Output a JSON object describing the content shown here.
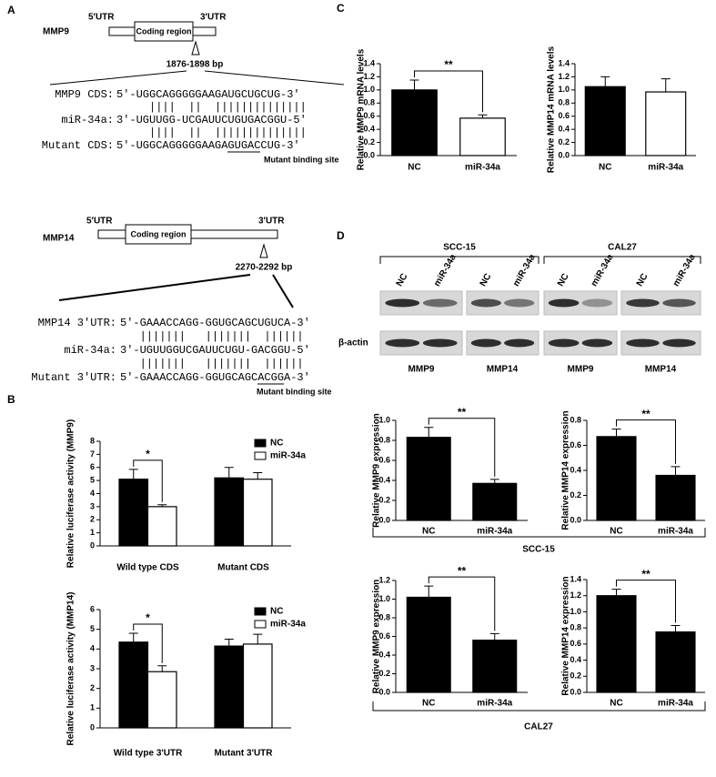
{
  "panel_labels": [
    "A",
    "B",
    "C",
    "D"
  ],
  "panel_a": {
    "mmp9": {
      "gene": "MMP9",
      "utr5": "5′UTR",
      "coding": "Coding region",
      "utr3": "3′UTR",
      "site": "1876-1898 bp",
      "lines": [
        {
          "label": "MMP9 CDS:",
          "sequence": "5′-UGGCAGGGGGAAGAUGCUGCUG-3′"
        },
        {
          "label": "miR-34a:",
          "sequence": "3′-UGUUGG-UCGAUUCUGUGACGGU-5′"
        },
        {
          "label": "Mutant CDS:",
          "sequence": "5′-UGGCAGGGGGAAGAGUGACCUG-3′"
        }
      ],
      "pairs": [
        "     ||||  ||  ||||||||||||||",
        "     ||||  ||  ||||||||||||||"
      ],
      "mutant_note": "Mutant binding site"
    },
    "mmp14": {
      "gene": "MMP14",
      "utr5": "5′UTR",
      "coding": "Coding region",
      "utr3": "3′UTR",
      "site": "2270-2292 bp",
      "lines": [
        {
          "label": "MMP14 3′UTR:",
          "sequence": "5′-GAAACCAGG-GGUGCAGCUGUCA-3′"
        },
        {
          "label": "miR-34a:",
          "sequence": "3′-UGUUGGUCGAUUCUGU-GACGGU-5′"
        },
        {
          "label": "Mutant 3′UTR:",
          "sequence": "5′-GAAACCAGG-GGUGCAGCACGGA-3′"
        }
      ],
      "pairs": [
        "   |||||||   |||||||  ||||||",
        "   |||||||   |||||||  ||||||"
      ],
      "mutant_note": "Mutant binding site"
    }
  },
  "panel_d": {
    "blot_groups": [
      "SCC-15",
      "CAL27"
    ],
    "lanes": [
      "NC",
      "miR-34a",
      "NC",
      "miR-34a",
      "NC",
      "miR-34a",
      "NC",
      "miR-34a"
    ],
    "loading": "β-actin",
    "proteins": [
      "MMP9",
      "MMP14",
      "MMP9",
      "MMP14"
    ],
    "chart_groups": [
      "SCC-15",
      "CAL27"
    ]
  },
  "chart_data": [
    {
      "type": "grouped-bar",
      "ylabel": "Relative luciferase activity (MMP9)",
      "categories": [
        "Wild type CDS",
        "Mutant CDS"
      ],
      "series": [
        {
          "name": "NC",
          "color": "#000000",
          "values": [
            5.1,
            5.2
          ],
          "errors": [
            0.75,
            0.8
          ]
        },
        {
          "name": "miR-34a",
          "color": "#ffffff",
          "values": [
            3.0,
            5.1
          ],
          "errors": [
            0.15,
            0.5
          ]
        }
      ],
      "ylim": [
        0,
        8
      ],
      "yticks": [
        0,
        1,
        2,
        3,
        4,
        5,
        6,
        7,
        8
      ],
      "annotation": "*",
      "legend": "upper right"
    },
    {
      "type": "grouped-bar",
      "ylabel": "Relative luciferase activity (MMP14)",
      "categories": [
        "Wild type 3'UTR",
        "Mutant 3'UTR"
      ],
      "series": [
        {
          "name": "NC",
          "color": "#000000",
          "values": [
            4.35,
            4.15
          ],
          "errors": [
            0.45,
            0.35
          ]
        },
        {
          "name": "miR-34a",
          "color": "#ffffff",
          "values": [
            2.85,
            4.25
          ],
          "errors": [
            0.3,
            0.5
          ]
        }
      ],
      "ylim": [
        0,
        6
      ],
      "yticks": [
        0,
        1,
        2,
        3,
        4,
        5,
        6
      ],
      "annotation": "*",
      "legend": "upper right"
    },
    {
      "type": "bar",
      "ylabel": "Relative MMP9 mRNA levels",
      "categories": [
        "NC",
        "miR-34a"
      ],
      "values": [
        1.0,
        0.57
      ],
      "errors": [
        0.15,
        0.05
      ],
      "colors": [
        "#000000",
        "#ffffff"
      ],
      "ylim": [
        0,
        1.4
      ],
      "yticks": [
        {
          "value": 0,
          "label": "0.0"
        },
        0.2,
        0.4,
        0.6,
        0.8,
        {
          "value": 1,
          "label": "1.0"
        },
        1.2,
        1.4
      ],
      "annotation": "**"
    },
    {
      "type": "bar",
      "ylabel": "Relative MMP14 mRNA levels",
      "categories": [
        "NC",
        "miR-34a"
      ],
      "values": [
        1.05,
        0.97
      ],
      "errors": [
        0.15,
        0.2
      ],
      "colors": [
        "#000000",
        "#ffffff"
      ],
      "ylim": [
        0,
        1.4
      ],
      "yticks": [
        {
          "value": 0,
          "label": "0.0"
        },
        0.2,
        0.4,
        0.6,
        0.8,
        {
          "value": 1,
          "label": "1.0"
        },
        1.2,
        1.4
      ]
    },
    {
      "type": "bar",
      "ylabel": "Relative MMP9 expression",
      "categories": [
        "NC",
        "miR-34a"
      ],
      "values": [
        0.83,
        0.37
      ],
      "errors": [
        0.1,
        0.04
      ],
      "color": "#000000",
      "ylim": [
        0,
        1
      ],
      "yticks": [
        {
          "value": 0,
          "label": "0.0"
        },
        0.2,
        0.4,
        0.6,
        0.8,
        {
          "value": 1,
          "label": "1.0"
        }
      ],
      "annotation": "**"
    },
    {
      "type": "bar",
      "ylabel": "Relative MMP14 expression",
      "categories": [
        "NC",
        "miR-34a"
      ],
      "values": [
        0.67,
        0.36
      ],
      "errors": [
        0.06,
        0.07
      ],
      "color": "#000000",
      "ylim": [
        0,
        0.8
      ],
      "yticks": [
        {
          "value": 0,
          "label": "0.0"
        },
        0.2,
        0.4,
        0.6,
        0.8
      ],
      "annotation": "**"
    },
    {
      "type": "bar",
      "ylabel": "Relative MMP9 expression",
      "categories": [
        "NC",
        "miR-34a"
      ],
      "values": [
        1.02,
        0.56
      ],
      "errors": [
        0.12,
        0.07
      ],
      "color": "#000000",
      "ylim": [
        0,
        1.2
      ],
      "yticks": [
        {
          "value": 0,
          "label": "0.0"
        },
        0.2,
        0.4,
        0.6,
        0.8,
        {
          "value": 1,
          "label": "1.0"
        },
        1.2
      ],
      "annotation": "**"
    },
    {
      "type": "bar",
      "ylabel": "Relative MMP14 expression",
      "categories": [
        "NC",
        "miR-34a"
      ],
      "values": [
        1.2,
        0.75
      ],
      "errors": [
        0.08,
        0.08
      ],
      "color": "#000000",
      "ylim": [
        0,
        1.4
      ],
      "yticks": [
        {
          "value": 0,
          "label": "0.0"
        },
        0.2,
        0.4,
        0.6,
        0.8,
        {
          "value": 1,
          "label": "1.0"
        },
        1.2,
        1.4
      ],
      "annotation": "**"
    }
  ]
}
